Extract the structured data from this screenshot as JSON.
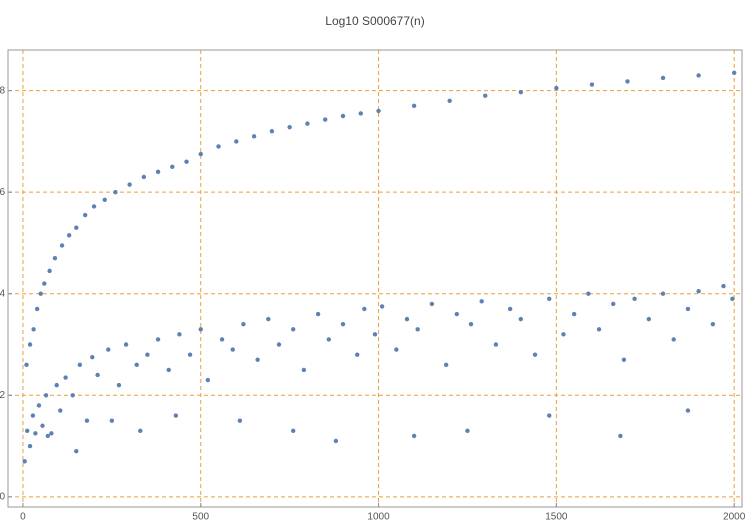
{
  "chart_data": {
    "type": "scatter",
    "title": "Log10 S000677(n)",
    "color": "#5e81b5",
    "grid": true,
    "grid_color": "#e8a13a",
    "xlim": [
      -42,
      2022
    ],
    "ylim": [
      -0.2,
      8.8
    ],
    "xticks": [
      0,
      500,
      1000,
      1500,
      2000
    ],
    "yticks": [
      0,
      2,
      4,
      6,
      8
    ],
    "x": [
      10,
      20,
      30,
      40,
      50,
      60,
      75,
      90,
      110,
      130,
      150,
      175,
      200,
      230,
      260,
      300,
      340,
      380,
      420,
      460,
      500,
      550,
      600,
      650,
      700,
      750,
      800,
      850,
      900,
      950,
      1000,
      1100,
      1200,
      1300,
      1400,
      1500,
      1600,
      1700,
      1800,
      1900,
      2000,
      5,
      12,
      20,
      28,
      35,
      45,
      55,
      65,
      80,
      95,
      105,
      120,
      140,
      160,
      180,
      195,
      210,
      240,
      270,
      290,
      320,
      350,
      380,
      410,
      440,
      470,
      500,
      520,
      560,
      590,
      620,
      660,
      690,
      720,
      760,
      790,
      830,
      860,
      900,
      940,
      960,
      990,
      1010,
      1050,
      1080,
      1110,
      1150,
      1190,
      1220,
      1260,
      1290,
      1330,
      1370,
      1400,
      1440,
      1480,
      1520,
      1550,
      1590,
      1620,
      1660,
      1690,
      1720,
      1760,
      1800,
      1830,
      1870,
      1900,
      1940,
      1970,
      1995,
      70,
      150,
      250,
      330,
      430,
      610,
      760,
      880,
      1100,
      1250,
      1480,
      1680,
      1870
    ],
    "values": [
      2.6,
      3.0,
      3.3,
      3.7,
      4.0,
      4.2,
      4.45,
      4.7,
      4.95,
      5.15,
      5.3,
      5.55,
      5.72,
      5.85,
      6.0,
      6.15,
      6.3,
      6.4,
      6.5,
      6.6,
      6.75,
      6.9,
      7.0,
      7.1,
      7.2,
      7.28,
      7.35,
      7.43,
      7.5,
      7.55,
      7.6,
      7.7,
      7.8,
      7.9,
      7.97,
      8.05,
      8.12,
      8.18,
      8.25,
      8.3,
      8.35,
      0.7,
      1.3,
      1.0,
      1.6,
      1.25,
      1.8,
      1.4,
      2.0,
      1.25,
      2.2,
      1.7,
      2.35,
      2.0,
      2.6,
      1.5,
      2.75,
      2.4,
      2.9,
      2.2,
      3.0,
      2.6,
      2.8,
      3.1,
      2.5,
      3.2,
      2.8,
      3.3,
      2.3,
      3.1,
      2.9,
      3.4,
      2.7,
      3.5,
      3.0,
      3.3,
      2.5,
      3.6,
      3.1,
      3.4,
      2.8,
      3.7,
      3.2,
      3.75,
      2.9,
      3.5,
      3.3,
      3.8,
      2.6,
      3.6,
      3.4,
      3.85,
      3.0,
      3.7,
      3.5,
      2.8,
      3.9,
      3.2,
      3.6,
      4.0,
      3.3,
      3.8,
      2.7,
      3.9,
      3.5,
      4.0,
      3.1,
      3.7,
      4.05,
      3.4,
      4.15,
      3.9,
      1.2,
      0.9,
      1.5,
      1.3,
      1.6,
      1.5,
      1.3,
      1.1,
      1.2,
      1.3,
      1.6,
      1.2,
      1.7
    ]
  }
}
